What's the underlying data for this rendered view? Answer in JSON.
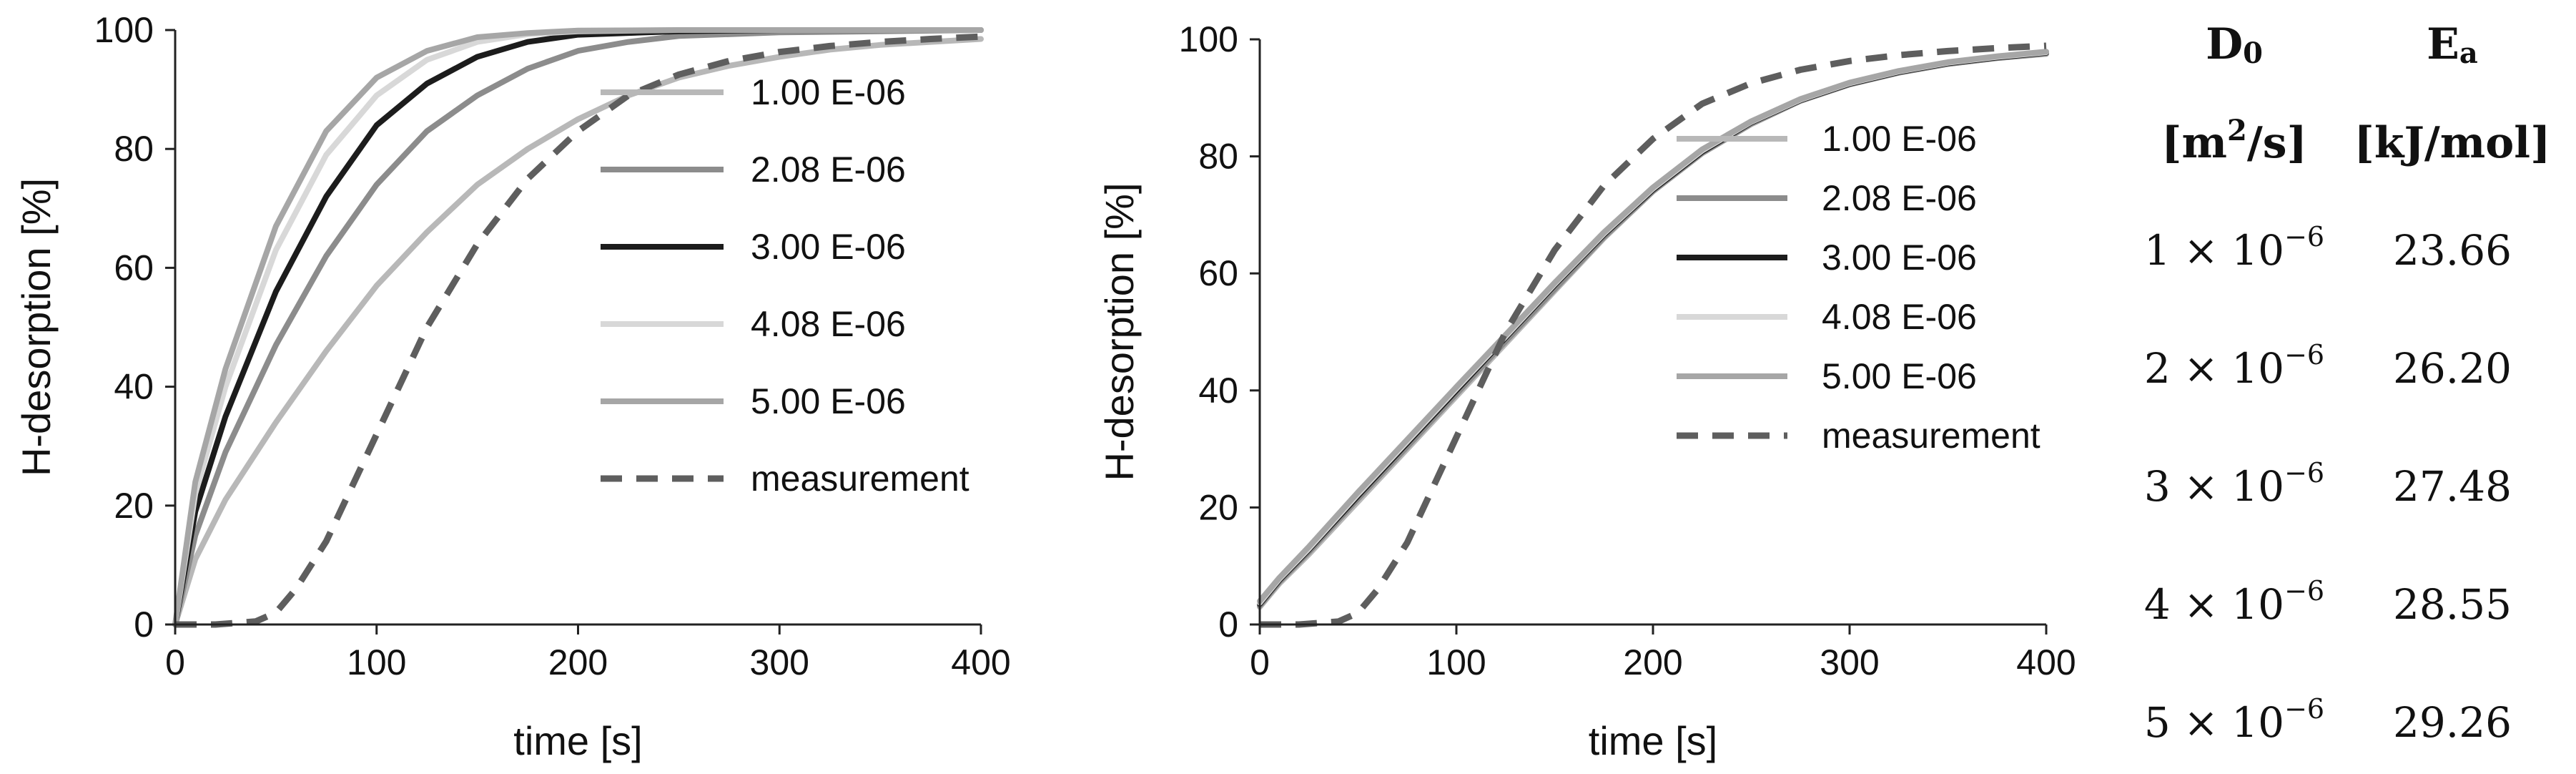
{
  "chart_data": [
    {
      "type": "line",
      "xlabel": "time [s]",
      "ylabel": "H-desorption  [%]",
      "xlim": [
        0,
        400
      ],
      "ylim": [
        0,
        100
      ],
      "xticks": [
        0,
        100,
        200,
        300,
        400
      ],
      "yticks": [
        0,
        20,
        40,
        60,
        80,
        100
      ],
      "grid": false,
      "legend_position": "center-right",
      "series": [
        {
          "name": "1.00 E-06",
          "color": "#b8b8b8",
          "dashed": false,
          "x": [
            0,
            10,
            25,
            50,
            75,
            100,
            125,
            150,
            175,
            200,
            225,
            250,
            275,
            300,
            325,
            350,
            375,
            400
          ],
          "y": [
            0,
            11,
            21,
            34,
            46,
            57,
            66,
            74,
            80,
            85,
            89,
            92,
            94,
            95.5,
            96.7,
            97.5,
            98,
            98.5
          ]
        },
        {
          "name": "2.08 E-06",
          "color": "#8c8c8c",
          "dashed": false,
          "x": [
            0,
            10,
            25,
            50,
            75,
            100,
            125,
            150,
            175,
            200,
            225,
            250,
            300,
            350,
            400
          ],
          "y": [
            0,
            15,
            29,
            47,
            62,
            74,
            83,
            89,
            93.5,
            96.5,
            98,
            99,
            99.6,
            99.8,
            100
          ]
        },
        {
          "name": "3.00 E-06",
          "color": "#1c1c1c",
          "dashed": false,
          "x": [
            0,
            10,
            25,
            50,
            75,
            100,
            125,
            150,
            175,
            200,
            250,
            300,
            400
          ],
          "y": [
            0,
            19,
            35,
            56,
            72,
            84,
            91,
            95.5,
            98,
            99.2,
            99.8,
            100,
            100
          ]
        },
        {
          "name": "4.08 E-06",
          "color": "#d8d8d8",
          "dashed": false,
          "x": [
            0,
            10,
            25,
            50,
            75,
            100,
            125,
            150,
            175,
            200,
            250,
            400
          ],
          "y": [
            0,
            22,
            40,
            63,
            79,
            89,
            95,
            98,
            99.3,
            99.8,
            100,
            100
          ]
        },
        {
          "name": "5.00 E-06",
          "color": "#a6a6a6",
          "dashed": false,
          "x": [
            0,
            10,
            25,
            50,
            75,
            100,
            125,
            150,
            175,
            200,
            250,
            400
          ],
          "y": [
            0,
            24,
            43,
            67,
            83,
            92,
            96.5,
            98.8,
            99.5,
            99.9,
            100,
            100
          ]
        },
        {
          "name": "measurement",
          "color": "#5e5e5e",
          "dashed": true,
          "x": [
            0,
            20,
            40,
            50,
            60,
            75,
            100,
            125,
            150,
            175,
            200,
            225,
            250,
            275,
            300,
            325,
            350,
            375,
            400
          ],
          "y": [
            0,
            0,
            0.5,
            2,
            6,
            14,
            32,
            50,
            64,
            75,
            83,
            89,
            92.5,
            94.8,
            96.3,
            97.3,
            98,
            98.5,
            98.9
          ]
        }
      ]
    },
    {
      "type": "line",
      "xlabel": "time [s]",
      "ylabel": "H-desorption  [%]",
      "xlim": [
        0,
        400
      ],
      "ylim": [
        0,
        100
      ],
      "xticks": [
        0,
        100,
        200,
        300,
        400
      ],
      "yticks": [
        0,
        20,
        40,
        60,
        80,
        100
      ],
      "grid": false,
      "legend_position": "center-right",
      "series": [
        {
          "name": "1.00 E-06",
          "color": "#b8b8b8",
          "dashed": false,
          "x": [
            0,
            10,
            25,
            50,
            75,
            100,
            125,
            150,
            175,
            200,
            225,
            250,
            275,
            300,
            325,
            350,
            375,
            400
          ],
          "y": [
            3,
            7,
            12,
            21,
            30,
            39,
            48,
            57,
            66,
            74,
            80.5,
            85.5,
            89.5,
            92.3,
            94.3,
            95.8,
            96.8,
            97.5
          ]
        },
        {
          "name": "2.08 E-06",
          "color": "#8c8c8c",
          "dashed": false,
          "x": [
            0,
            10,
            25,
            50,
            75,
            100,
            125,
            150,
            175,
            200,
            225,
            250,
            275,
            300,
            325,
            350,
            375,
            400
          ],
          "y": [
            3.2,
            7.3,
            12.4,
            21.5,
            30.4,
            39.4,
            48.4,
            57.3,
            66.2,
            74.1,
            80.6,
            85.6,
            89.5,
            92.3,
            94.3,
            95.8,
            96.8,
            97.6
          ]
        },
        {
          "name": "3.00 E-06",
          "color": "#1c1c1c",
          "dashed": false,
          "x": [
            0,
            10,
            25,
            50,
            75,
            100,
            125,
            150,
            175,
            200,
            225,
            250,
            275,
            300,
            325,
            350,
            375,
            400
          ],
          "y": [
            3.5,
            7.6,
            12.8,
            22,
            31,
            40,
            49,
            58,
            66.6,
            74.3,
            80.8,
            85.8,
            89.6,
            92.4,
            94.4,
            95.9,
            96.9,
            97.7
          ]
        },
        {
          "name": "4.08 E-06",
          "color": "#d8d8d8",
          "dashed": false,
          "x": [
            0,
            10,
            25,
            50,
            75,
            100,
            125,
            150,
            175,
            200,
            225,
            250,
            275,
            300,
            325,
            350,
            375,
            400
          ],
          "y": [
            3.7,
            7.8,
            13,
            22.3,
            31.3,
            40.3,
            49.2,
            58.2,
            66.8,
            74.5,
            81,
            85.9,
            89.7,
            92.5,
            94.5,
            96,
            97,
            97.8
          ]
        },
        {
          "name": "5.00 E-06",
          "color": "#a6a6a6",
          "dashed": false,
          "x": [
            0,
            10,
            25,
            50,
            75,
            100,
            125,
            150,
            175,
            200,
            225,
            250,
            275,
            300,
            325,
            350,
            375,
            400
          ],
          "y": [
            4,
            8,
            13.3,
            22.6,
            31.6,
            40.6,
            49.5,
            58.4,
            67,
            74.7,
            81.2,
            86,
            89.8,
            92.6,
            94.6,
            96.1,
            97.1,
            97.9
          ]
        },
        {
          "name": "measurement",
          "color": "#5e5e5e",
          "dashed": true,
          "x": [
            0,
            20,
            40,
            50,
            60,
            75,
            100,
            125,
            150,
            175,
            200,
            225,
            250,
            275,
            300,
            325,
            350,
            375,
            400
          ],
          "y": [
            0,
            0,
            0.5,
            2,
            6,
            14,
            32,
            50,
            64,
            75,
            83,
            89,
            92.5,
            94.8,
            96.3,
            97.3,
            98,
            98.5,
            98.9
          ]
        }
      ]
    }
  ],
  "table": {
    "headers": [
      {
        "symbol": "D",
        "subscript": "0",
        "unit_pre": "[m",
        "unit_sup": "2",
        "unit_post": "/s]"
      },
      {
        "symbol": "E",
        "subscript": "a",
        "unit_pre": "[kJ/mol]",
        "unit_sup": "",
        "unit_post": ""
      }
    ],
    "rows": [
      {
        "mantissa": "1 × 10",
        "exponent": "−6",
        "energy": "23.66"
      },
      {
        "mantissa": "2 × 10",
        "exponent": "−6",
        "energy": "26.20"
      },
      {
        "mantissa": "3 × 10",
        "exponent": "−6",
        "energy": "27.48"
      },
      {
        "mantissa": "4 × 10",
        "exponent": "−6",
        "energy": "28.55"
      },
      {
        "mantissa": "5 × 10",
        "exponent": "−6",
        "energy": "29.26"
      }
    ]
  }
}
